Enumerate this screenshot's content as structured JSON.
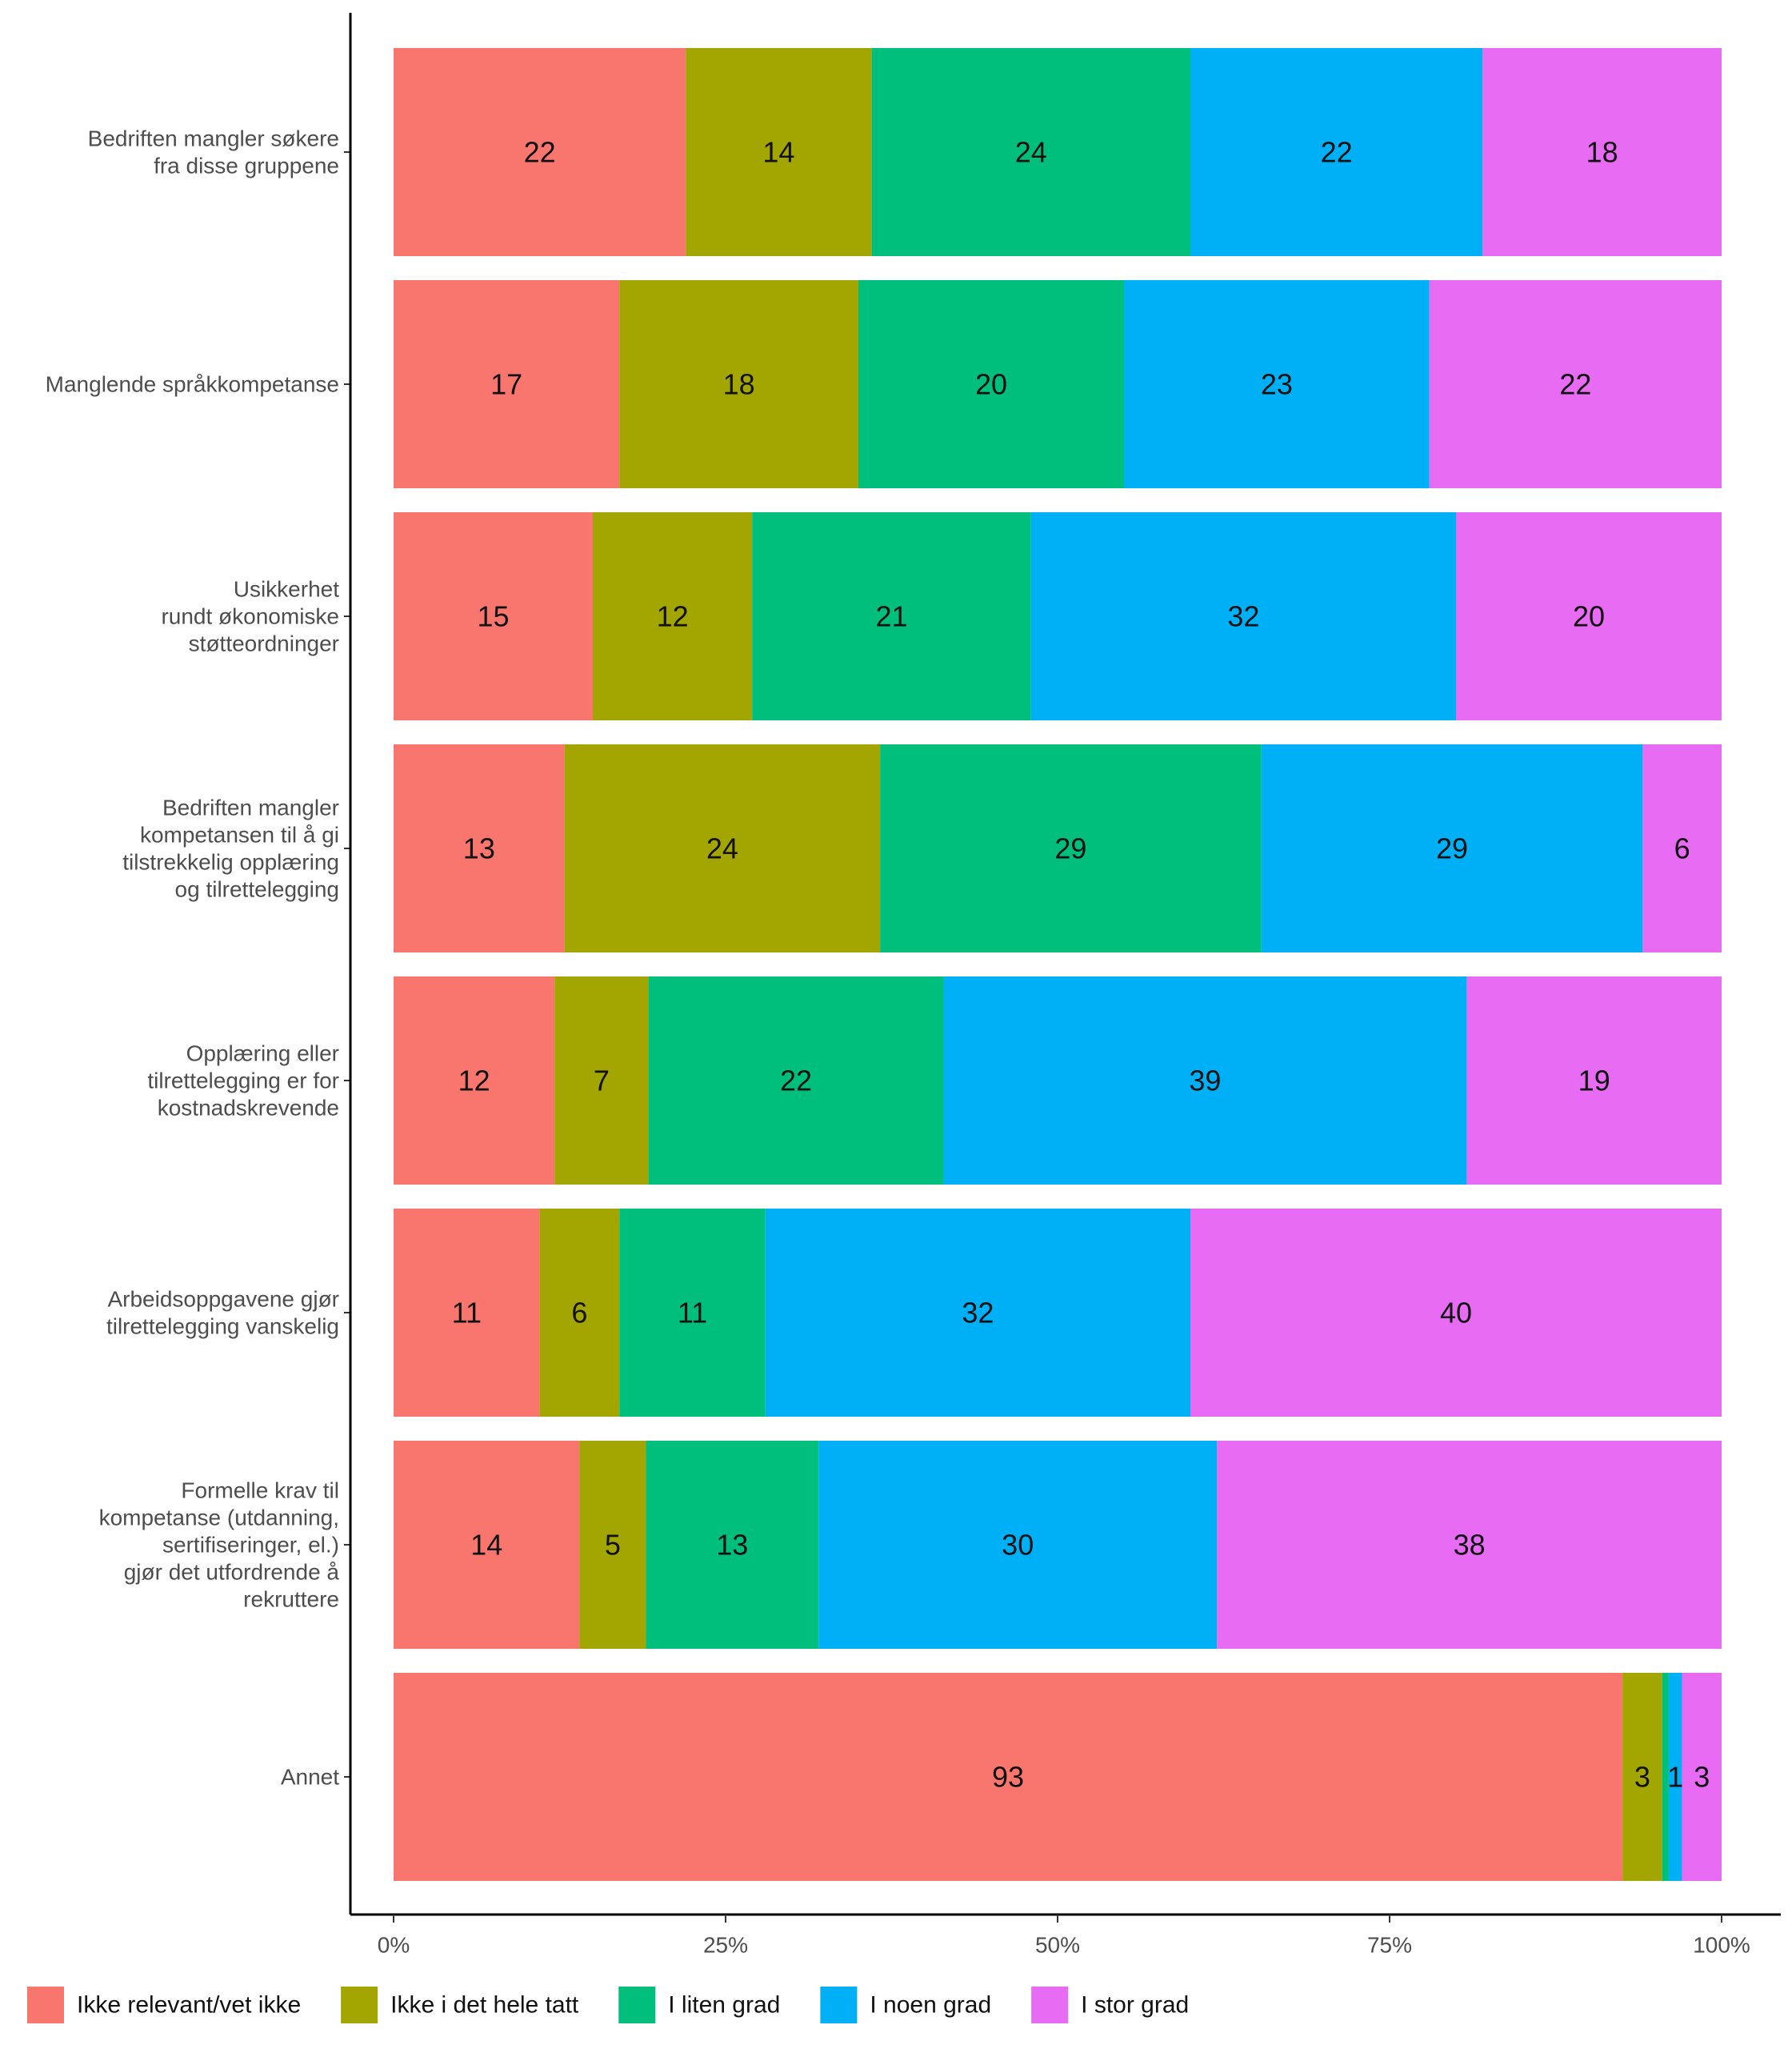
{
  "chart_data": {
    "type": "bar",
    "orientation": "horizontal",
    "stacked": true,
    "percent": true,
    "xlim": [
      0,
      100
    ],
    "x_ticks": [
      "0%",
      "25%",
      "50%",
      "75%",
      "100%"
    ],
    "grid": false,
    "legend_position": "bottom",
    "categories": [
      [
        "Bedriften mangler søkere",
        "fra disse gruppene"
      ],
      [
        "Manglende språkkompetanse"
      ],
      [
        "Usikkerhet",
        "rundt økonomiske",
        "støtteordninger"
      ],
      [
        "Bedriften mangler",
        "kompetansen til å gi",
        "tilstrekkelig opplæring",
        "og tilrettelegging"
      ],
      [
        "Opplæring eller",
        "tilrettelegging er for",
        "kostnadskrevende"
      ],
      [
        "Arbeidsoppgavene gjør",
        "tilrettelegging vanskelig"
      ],
      [
        "Formelle krav til",
        "kompetanse (utdanning,",
        "sertifiseringer, el.)",
        "gjør det utfordrende å",
        "rekruttere"
      ],
      [
        "Annet"
      ]
    ],
    "series": [
      {
        "name": "Ikke relevant/vet ikke",
        "color": "#F8766D",
        "values": [
          22,
          17,
          15,
          13,
          12,
          11,
          14,
          93
        ]
      },
      {
        "name": "Ikke i det hele tatt",
        "color": "#A3A500",
        "values": [
          14,
          18,
          12,
          24,
          7,
          6,
          5,
          3
        ]
      },
      {
        "name": "I liten grad",
        "color": "#00BF7D",
        "values": [
          24,
          20,
          21,
          29,
          22,
          11,
          13,
          0.5
        ]
      },
      {
        "name": "I noen grad",
        "color": "#00B0F6",
        "values": [
          22,
          23,
          32,
          29,
          39,
          32,
          30,
          1
        ]
      },
      {
        "name": "I stor grad",
        "color": "#E76BF3",
        "values": [
          18,
          22,
          20,
          6,
          19,
          40,
          38,
          3
        ]
      }
    ],
    "value_labels": [
      [
        "22",
        "14",
        "24",
        "22",
        "18"
      ],
      [
        "17",
        "18",
        "20",
        "23",
        "22"
      ],
      [
        "15",
        "12",
        "21",
        "32",
        "20"
      ],
      [
        "13",
        "24",
        "29",
        "29",
        "6"
      ],
      [
        "12",
        "7",
        "22",
        "39",
        "19"
      ],
      [
        "11",
        "6",
        "11",
        "32",
        "40"
      ],
      [
        "14",
        "5",
        "13",
        "30",
        "38"
      ],
      [
        "93",
        "3",
        "",
        "1",
        "3"
      ]
    ]
  }
}
